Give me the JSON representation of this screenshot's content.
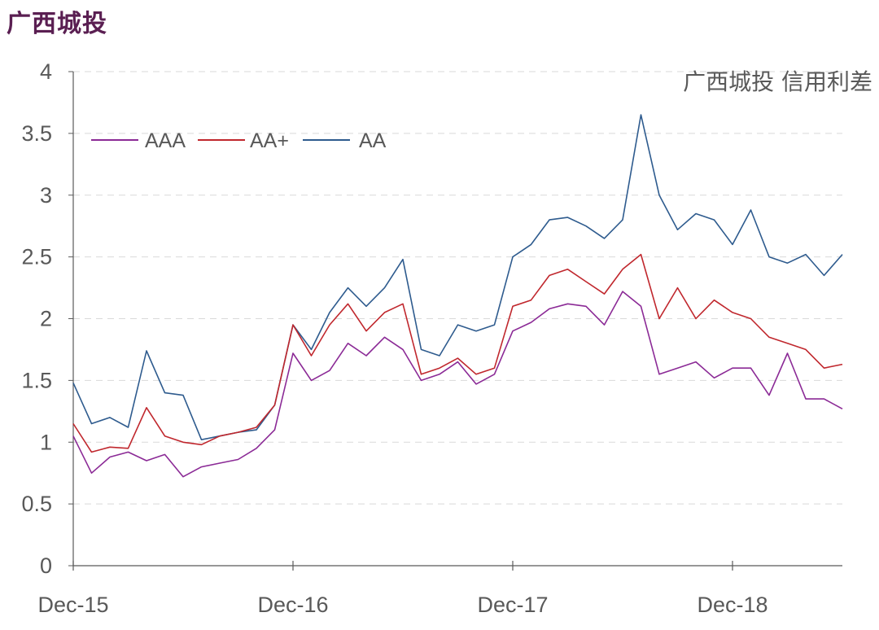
{
  "page_title": "广西城投",
  "chart_data": {
    "type": "line",
    "title": "广西城投 信用利差",
    "xlabel": "",
    "ylabel": "",
    "ylim": [
      0,
      4
    ],
    "yticks": [
      0,
      0.5,
      1,
      1.5,
      2,
      2.5,
      3,
      3.5,
      4
    ],
    "ytick_labels": [
      "0",
      "0.5",
      "1",
      "1.5",
      "2",
      "2.5",
      "3",
      "3.5",
      "4"
    ],
    "xlim": [
      "2015-12",
      "2019-06"
    ],
    "xtick_labels": [
      "Dec-15",
      "Dec-16",
      "Dec-17",
      "Dec-18"
    ],
    "xtick_values": [
      "2015-12",
      "2016-12",
      "2017-12",
      "2018-12"
    ],
    "grid": "horizontal dashed",
    "legend_position": "top-left",
    "series": [
      {
        "name": "AAA",
        "color": "#8b2a96",
        "x": [
          "2015-12",
          "2016-01",
          "2016-02",
          "2016-03",
          "2016-04",
          "2016-05",
          "2016-06",
          "2016-07",
          "2016-08",
          "2016-09",
          "2016-10",
          "2016-11",
          "2016-12",
          "2017-01",
          "2017-02",
          "2017-03",
          "2017-04",
          "2017-05",
          "2017-06",
          "2017-07",
          "2017-08",
          "2017-09",
          "2017-10",
          "2017-11",
          "2017-12",
          "2018-01",
          "2018-02",
          "2018-03",
          "2018-04",
          "2018-05",
          "2018-06",
          "2018-07",
          "2018-08",
          "2018-09",
          "2018-10",
          "2018-11",
          "2018-12",
          "2019-01",
          "2019-02",
          "2019-03",
          "2019-04",
          "2019-05",
          "2019-06"
        ],
        "y": [
          1.05,
          0.75,
          0.88,
          0.92,
          0.85,
          0.9,
          0.72,
          0.8,
          0.83,
          0.86,
          0.95,
          1.1,
          1.72,
          1.5,
          1.58,
          1.8,
          1.7,
          1.85,
          1.75,
          1.5,
          1.55,
          1.65,
          1.47,
          1.55,
          1.9,
          1.97,
          2.08,
          2.12,
          2.1,
          1.95,
          2.22,
          2.1,
          1.55,
          1.6,
          1.65,
          1.52,
          1.6,
          1.6,
          1.38,
          1.72,
          1.35,
          1.35,
          1.27
        ]
      },
      {
        "name": "AA+",
        "color": "#c0272d",
        "x": [
          "2015-12",
          "2016-01",
          "2016-02",
          "2016-03",
          "2016-04",
          "2016-05",
          "2016-06",
          "2016-07",
          "2016-08",
          "2016-09",
          "2016-10",
          "2016-11",
          "2016-12",
          "2017-01",
          "2017-02",
          "2017-03",
          "2017-04",
          "2017-05",
          "2017-06",
          "2017-07",
          "2017-08",
          "2017-09",
          "2017-10",
          "2017-11",
          "2017-12",
          "2018-01",
          "2018-02",
          "2018-03",
          "2018-04",
          "2018-05",
          "2018-06",
          "2018-07",
          "2018-08",
          "2018-09",
          "2018-10",
          "2018-11",
          "2018-12",
          "2019-01",
          "2019-02",
          "2019-03",
          "2019-04",
          "2019-05",
          "2019-06"
        ],
        "y": [
          1.15,
          0.92,
          0.96,
          0.95,
          1.28,
          1.05,
          1.0,
          0.98,
          1.05,
          1.08,
          1.12,
          1.3,
          1.95,
          1.7,
          1.95,
          2.12,
          1.9,
          2.05,
          2.12,
          1.55,
          1.6,
          1.68,
          1.55,
          1.6,
          2.1,
          2.15,
          2.35,
          2.4,
          2.3,
          2.2,
          2.4,
          2.52,
          2.0,
          2.25,
          2.0,
          2.15,
          2.05,
          2.0,
          1.85,
          1.8,
          1.75,
          1.6,
          1.63
        ]
      },
      {
        "name": "AA",
        "color": "#2e5b8e",
        "x": [
          "2015-12",
          "2016-01",
          "2016-02",
          "2016-03",
          "2016-04",
          "2016-05",
          "2016-06",
          "2016-07",
          "2016-08",
          "2016-09",
          "2016-10",
          "2016-11",
          "2016-12",
          "2017-01",
          "2017-02",
          "2017-03",
          "2017-04",
          "2017-05",
          "2017-06",
          "2017-07",
          "2017-08",
          "2017-09",
          "2017-10",
          "2017-11",
          "2017-12",
          "2018-01",
          "2018-02",
          "2018-03",
          "2018-04",
          "2018-05",
          "2018-06",
          "2018-07",
          "2018-08",
          "2018-09",
          "2018-10",
          "2018-11",
          "2018-12",
          "2019-01",
          "2019-02",
          "2019-03",
          "2019-04",
          "2019-05",
          "2019-06"
        ],
        "y": [
          1.48,
          1.15,
          1.2,
          1.12,
          1.74,
          1.4,
          1.38,
          1.02,
          1.05,
          1.08,
          1.1,
          1.3,
          1.95,
          1.75,
          2.05,
          2.25,
          2.1,
          2.25,
          2.48,
          1.75,
          1.7,
          1.95,
          1.9,
          1.95,
          2.5,
          2.6,
          2.8,
          2.82,
          2.75,
          2.65,
          2.8,
          3.65,
          3.0,
          2.72,
          2.85,
          2.8,
          2.6,
          2.88,
          2.5,
          2.45,
          2.52,
          2.35,
          2.52
        ]
      }
    ]
  }
}
